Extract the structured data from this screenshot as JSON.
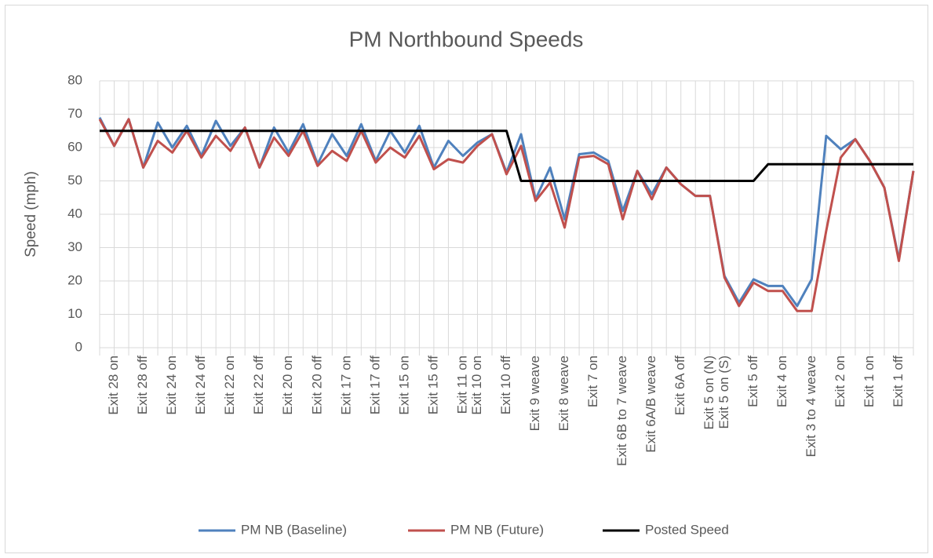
{
  "chart_data": {
    "type": "line",
    "title": "PM Northbound Speeds",
    "y_label": "Speed (mph)",
    "categories": [
      null,
      "Exit 28 on",
      null,
      "Exit 28 off",
      null,
      "Exit 24 on",
      null,
      "Exit 24 off",
      null,
      "Exit 22 on",
      null,
      "Exit 22 off",
      null,
      "Exit 20 on",
      null,
      "Exit 20 off",
      null,
      "Exit 17 on",
      null,
      "Exit 17 off",
      null,
      "Exit 15 on",
      null,
      "Exit 15 off",
      null,
      "Exit 11 on",
      "Exit 10 on",
      null,
      "Exit 10 off",
      null,
      "Exit 9 weave",
      null,
      "Exit 8 weave",
      null,
      "Exit 7 on",
      null,
      "Exit 6B to 7 weave",
      null,
      "Exit 6A/B weave",
      null,
      "Exit 6A off",
      null,
      "Exit 5 on (N)",
      "Exit 5 on (S)",
      null,
      "Exit 5 off",
      null,
      "Exit 4 on",
      null,
      "Exit 3 to 4 weave",
      null,
      "Exit 2 on",
      null,
      "Exit 1 on",
      null,
      "Exit 1 off",
      null
    ],
    "series": [
      {
        "name": "PM NB (Baseline)",
        "color": "#4f81bd",
        "values": [
          69,
          60.5,
          68.5,
          54,
          67.5,
          60,
          66.5,
          57.5,
          68,
          60.5,
          66,
          54,
          66,
          58.5,
          67,
          55,
          64,
          57.5,
          67,
          56,
          65,
          58.5,
          66.5,
          54,
          62,
          57.5,
          61.5,
          64,
          52.5,
          64,
          44.5,
          54,
          38.5,
          58,
          58.5,
          56,
          41,
          53,
          46,
          54,
          49,
          45.5,
          45.5,
          21.5,
          13.5,
          20.5,
          18.5,
          18.5,
          12.5,
          20.5,
          63.5,
          59.5,
          62.5,
          56,
          48,
          26.5,
          53
        ]
      },
      {
        "name": "PM NB (Future)",
        "color": "#c0504d",
        "values": [
          68.5,
          60.5,
          68.5,
          54,
          62,
          58.5,
          65,
          57,
          63.5,
          59,
          66,
          54,
          63,
          57.5,
          65,
          54.5,
          59,
          56,
          65,
          55.5,
          60,
          57,
          63.5,
          53.5,
          56.5,
          55.5,
          60.5,
          64,
          52,
          60.5,
          44,
          49.5,
          36,
          57,
          57.5,
          55,
          38.5,
          53,
          44.5,
          54,
          49,
          45.5,
          45.5,
          21,
          12.5,
          19.5,
          17,
          17,
          11,
          11,
          35,
          57,
          62.5,
          56,
          48,
          26,
          53
        ]
      },
      {
        "name": "Posted Speed",
        "color": "#000000",
        "values": [
          65,
          65,
          65,
          65,
          65,
          65,
          65,
          65,
          65,
          65,
          65,
          65,
          65,
          65,
          65,
          65,
          65,
          65,
          65,
          65,
          65,
          65,
          65,
          65,
          65,
          65,
          65,
          65,
          65,
          50,
          50,
          50,
          50,
          50,
          50,
          50,
          50,
          50,
          50,
          50,
          50,
          50,
          50,
          50,
          50,
          50,
          55,
          55,
          55,
          55,
          55,
          55,
          55,
          55,
          55,
          55,
          55
        ]
      }
    ],
    "ylim": [
      0,
      80
    ],
    "yticks": [
      0,
      10,
      20,
      30,
      40,
      50,
      60,
      70,
      80
    ],
    "grid": true,
    "legend": "bottom"
  }
}
